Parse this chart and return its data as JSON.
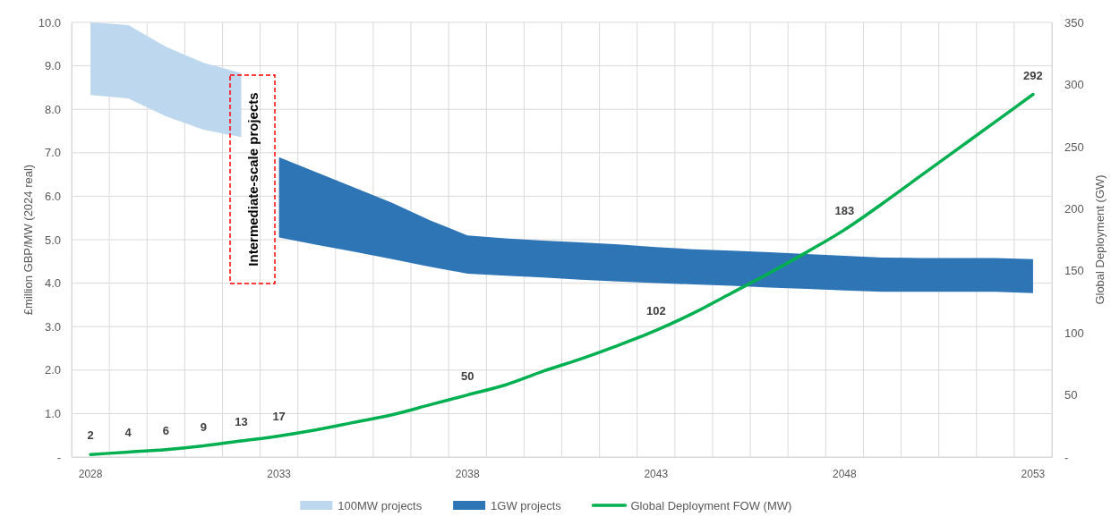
{
  "chart_data": {
    "type": "line",
    "ylabel": "£million GBP/MW (2024 real)",
    "y2label": "Global Deployment (GW)",
    "categories": [
      "2028",
      null,
      null,
      null,
      null,
      "2033",
      null,
      null,
      null,
      null,
      "2038",
      null,
      null,
      null,
      null,
      "2043",
      null,
      null,
      null,
      null,
      "2048",
      null,
      null,
      null,
      null,
      "2053"
    ],
    "ylim": [
      0,
      10
    ],
    "yticks": [
      {
        "value": 0,
        "label": "-"
      },
      {
        "value": 1,
        "label": "1.0"
      },
      {
        "value": 2,
        "label": "2.0"
      },
      {
        "value": 3,
        "label": "3.0"
      },
      {
        "value": 4,
        "label": "4.0"
      },
      {
        "value": 5,
        "label": "5.0"
      },
      {
        "value": 6,
        "label": "6.0"
      },
      {
        "value": 7,
        "label": "7.0"
      },
      {
        "value": 8,
        "label": "8.0"
      },
      {
        "value": 9,
        "label": "9.0"
      },
      {
        "value": 10,
        "label": "10.0"
      }
    ],
    "y2lim": [
      0,
      350
    ],
    "y2ticks": [
      {
        "value": 0,
        "label": "-"
      },
      50,
      100,
      150,
      200,
      250,
      300,
      350
    ],
    "grid": true,
    "legend": "bottom",
    "annotations": [
      "Intermediate-scale projects"
    ],
    "series": [
      {
        "name": "100MW projects",
        "color": "#bdd7ee",
        "values": [
          null,
          null,
          null,
          null,
          null,
          null,
          null,
          null,
          null,
          null,
          null,
          null,
          null,
          null,
          null,
          null,
          null,
          null,
          null,
          null,
          null,
          null,
          null,
          null,
          null,
          null
        ],
        "upper": [
          10.0,
          9.94,
          9.44,
          9.07,
          8.83,
          null,
          null,
          null,
          null,
          null,
          null,
          null,
          null,
          null,
          null,
          null,
          null,
          null,
          null,
          null,
          null,
          null,
          null,
          null,
          null,
          null
        ],
        "lower": [
          8.33,
          8.25,
          7.84,
          7.53,
          7.36,
          null,
          null,
          null,
          null,
          null,
          null,
          null,
          null,
          null,
          null,
          null,
          null,
          null,
          null,
          null,
          null,
          null,
          null,
          null,
          null,
          null
        ]
      },
      {
        "name": "1GW projects",
        "color": "#2e75b6",
        "values": [
          null,
          null,
          null,
          null,
          null,
          null,
          null,
          null,
          null,
          null,
          null,
          null,
          null,
          null,
          null,
          null,
          null,
          null,
          null,
          null,
          null,
          null,
          null,
          null,
          null,
          null
        ],
        "upper": [
          null,
          null,
          null,
          null,
          null,
          6.9,
          6.55,
          6.2,
          5.85,
          5.45,
          5.1,
          5.03,
          4.98,
          4.94,
          4.89,
          4.83,
          4.78,
          4.75,
          4.71,
          4.67,
          4.63,
          4.59,
          4.58,
          4.58,
          4.58,
          4.55
        ],
        "lower": [
          null,
          null,
          null,
          null,
          null,
          5.05,
          4.88,
          4.72,
          4.55,
          4.38,
          4.22,
          4.17,
          4.13,
          4.08,
          4.04,
          4.0,
          3.97,
          3.94,
          3.9,
          3.87,
          3.83,
          3.8,
          3.8,
          3.8,
          3.8,
          3.77
        ]
      },
      {
        "name": "Global Deployment FOW (MW)",
        "axis": "y2",
        "color": "#00b050",
        "values": [
          2,
          4,
          6,
          9,
          13,
          17,
          22,
          28,
          34,
          42,
          50,
          58,
          69,
          79,
          90,
          102,
          116,
          132,
          148,
          165,
          183,
          204,
          226,
          248,
          270,
          292
        ],
        "value_labels": [
          "2",
          "4",
          "6",
          "9",
          "13",
          "17",
          null,
          null,
          null,
          null,
          "50",
          null,
          null,
          null,
          null,
          "102",
          null,
          null,
          null,
          null,
          "183",
          null,
          null,
          null,
          null,
          "292"
        ]
      }
    ]
  }
}
